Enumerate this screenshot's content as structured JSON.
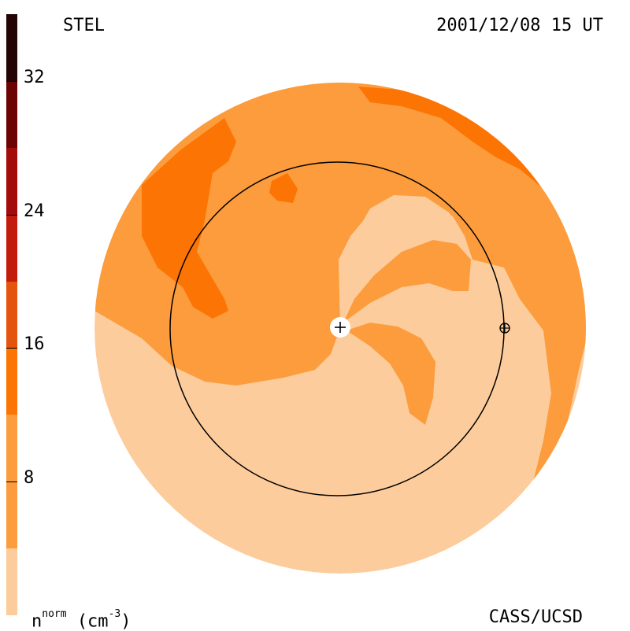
{
  "header": {
    "left_label": "STEL",
    "right_label": "2001/12/08 15 UT"
  },
  "footer": {
    "credit": "CASS/UCSD",
    "unit_base": "n",
    "unit_sup": "norm",
    "unit_rest": "(cm",
    "unit_exp": "-3",
    "unit_close": ")"
  },
  "colorbar": {
    "min": 0,
    "max": 36,
    "ticks": [
      {
        "value": 32,
        "label": "32"
      },
      {
        "value": 24,
        "label": "24"
      },
      {
        "value": 16,
        "label": "16"
      },
      {
        "value": 8,
        "label": "8"
      }
    ],
    "bands": [
      {
        "from": 0,
        "to": 4,
        "color": "#fccc9c"
      },
      {
        "from": 4,
        "to": 12,
        "color": "#fc9c3c"
      },
      {
        "from": 12,
        "to": 16,
        "color": "#fc7404"
      },
      {
        "from": 16,
        "to": 20,
        "color": "#e4540c"
      },
      {
        "from": 20,
        "to": 24,
        "color": "#c41c0c"
      },
      {
        "from": 24,
        "to": 28,
        "color": "#a40c0c"
      },
      {
        "from": 28,
        "to": 32,
        "color": "#6c0404"
      },
      {
        "from": 32,
        "to": 36,
        "color": "#240404"
      }
    ]
  },
  "map": {
    "colors": {
      "low": "#fccc9c",
      "mid": "#fc9c3c",
      "high": "#fc7404",
      "line": "#000000",
      "sun": "#ffffff"
    },
    "sun_icon": "plus-icon",
    "earth_icon": "earth-symbol-icon"
  }
}
